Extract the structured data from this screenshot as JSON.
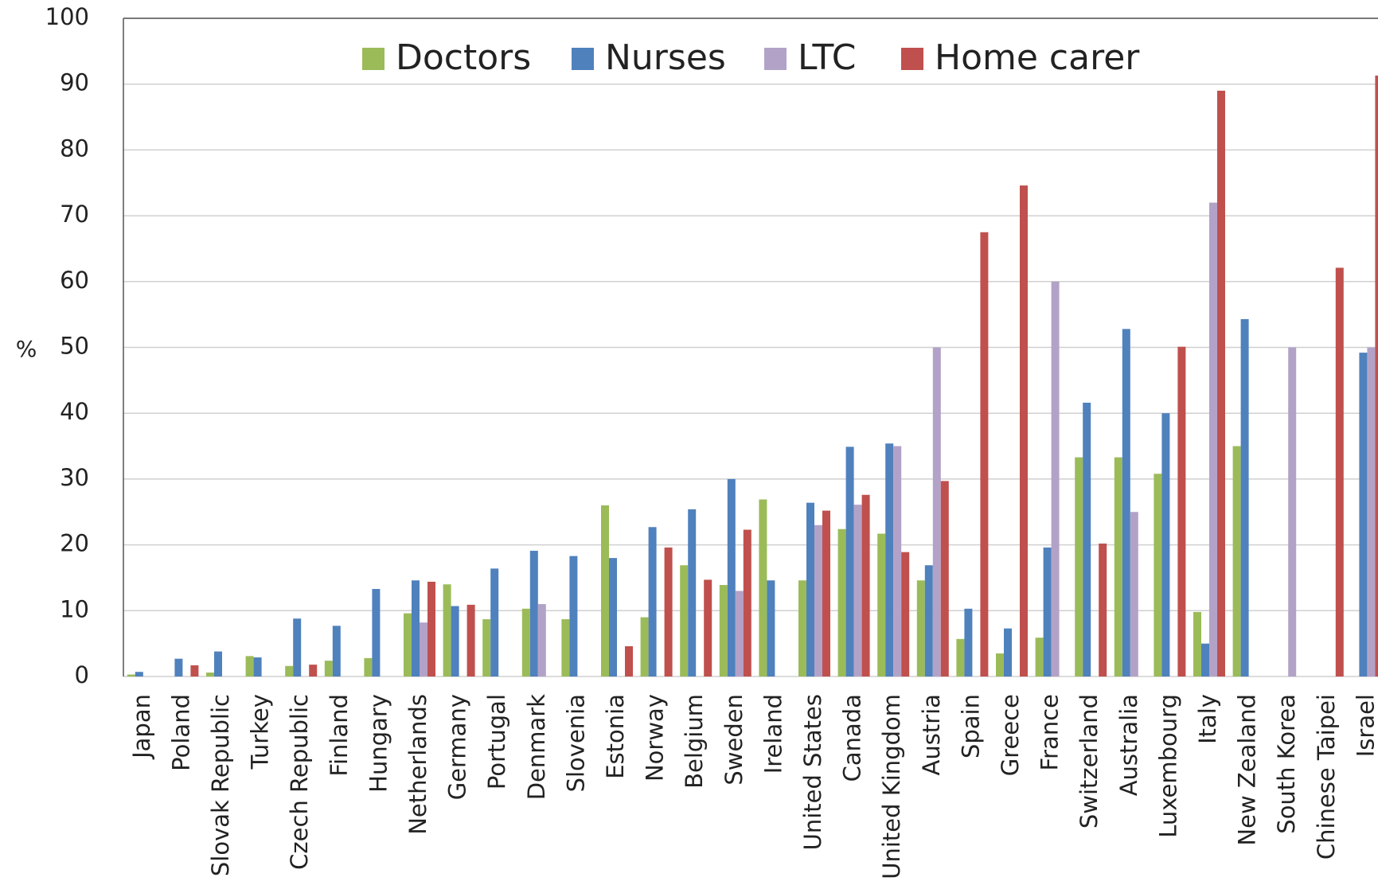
{
  "chart_data": {
    "type": "bar",
    "y_label": "%",
    "categories": [
      "Japan",
      "Poland",
      "Slovak Republic",
      "Turkey",
      "Czech Republic",
      "Finland",
      "Hungary",
      "Netherlands",
      "Germany",
      "Portugal",
      "Denmark",
      "Slovenia",
      "Estonia",
      "Norway",
      "Belgium",
      "Sweden",
      "Ireland",
      "United States",
      "Canada",
      "United Kingdom",
      "Austria",
      "Spain",
      "Greece",
      "France",
      "Switzerland",
      "Australia",
      "Luxembourg",
      "Italy",
      "New Zealand",
      "South Korea",
      "Chinese Taipei",
      "Israel"
    ],
    "series": [
      {
        "name": "Doctors",
        "color": "#9bbb59",
        "values": [
          0.3,
          null,
          0.6,
          3.1,
          1.6,
          2.4,
          2.8,
          9.6,
          14,
          8.7,
          10.3,
          8.7,
          26,
          9,
          16.9,
          13.9,
          26.9,
          14.6,
          22.4,
          21.7,
          14.6,
          5.7,
          3.5,
          5.9,
          33.3,
          33.3,
          30.8,
          9.8,
          35,
          null,
          null,
          null
        ]
      },
      {
        "name": "Nurses",
        "color": "#4f81bd",
        "values": [
          0.7,
          2.7,
          3.8,
          2.9,
          8.8,
          7.7,
          13.3,
          14.6,
          10.7,
          16.4,
          19.1,
          18.3,
          18,
          22.7,
          25.4,
          30,
          14.6,
          26.4,
          34.9,
          35.4,
          16.9,
          10.3,
          7.3,
          19.6,
          41.6,
          52.8,
          40,
          5,
          54.3,
          null,
          null,
          49.2
        ]
      },
      {
        "name": "LTC",
        "color": "#b3a2c7",
        "values": [
          null,
          null,
          null,
          null,
          null,
          null,
          null,
          8.2,
          null,
          null,
          11,
          null,
          null,
          null,
          null,
          13,
          null,
          23,
          26.1,
          35,
          50,
          null,
          null,
          60,
          null,
          25,
          null,
          72,
          null,
          50,
          null,
          50
        ]
      },
      {
        "name": "Home carer",
        "color": "#c0504d",
        "values": [
          null,
          1.7,
          null,
          null,
          1.8,
          null,
          null,
          14.4,
          10.9,
          null,
          null,
          null,
          4.6,
          19.6,
          14.7,
          22.3,
          null,
          25.2,
          27.6,
          18.9,
          29.7,
          67.5,
          74.6,
          null,
          20.2,
          null,
          50.1,
          89,
          null,
          null,
          62.1,
          91.3
        ]
      }
    ],
    "ylim": [
      0,
      100
    ],
    "yticks": [
      0,
      10,
      20,
      30,
      40,
      50,
      60,
      70,
      80,
      90,
      100
    ],
    "grid": true,
    "legend": "top"
  }
}
